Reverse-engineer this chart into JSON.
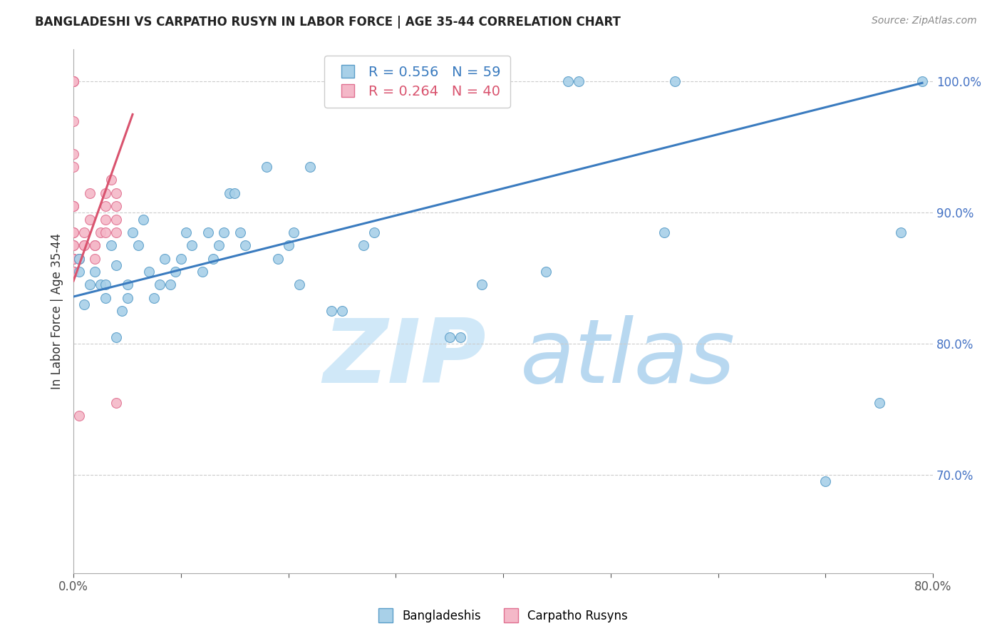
{
  "title": "BANGLADESHI VS CARPATHO RUSYN IN LABOR FORCE | AGE 35-44 CORRELATION CHART",
  "source": "Source: ZipAtlas.com",
  "ylabel": "In Labor Force | Age 35-44",
  "legend_blue_label": "Bangladeshis",
  "legend_pink_label": "Carpatho Rusyns",
  "R_blue": 0.556,
  "N_blue": 59,
  "R_pink": 0.264,
  "N_pink": 40,
  "blue_color": "#a8d0e8",
  "pink_color": "#f4b8c8",
  "blue_edge_color": "#5b9ec9",
  "pink_edge_color": "#e07090",
  "blue_line_color": "#3a7bbf",
  "pink_line_color": "#d9536e",
  "watermark_zip": "ZIP",
  "watermark_atlas": "atlas",
  "watermark_color": "#d0e8f8",
  "xlim": [
    0.0,
    0.8
  ],
  "ylim": [
    0.625,
    1.025
  ],
  "yticks": [
    0.7,
    0.8,
    0.9,
    1.0
  ],
  "xtick_positions": [
    0.0,
    0.1,
    0.2,
    0.3,
    0.4,
    0.5,
    0.6,
    0.7,
    0.8
  ],
  "xtick_labels": [
    "0.0%",
    "",
    "",
    "",
    "",
    "",
    "",
    "",
    "80.0%"
  ],
  "blue_x": [
    0.005,
    0.005,
    0.01,
    0.015,
    0.02,
    0.025,
    0.03,
    0.03,
    0.035,
    0.04,
    0.04,
    0.045,
    0.05,
    0.05,
    0.055,
    0.06,
    0.065,
    0.07,
    0.075,
    0.08,
    0.085,
    0.09,
    0.095,
    0.1,
    0.105,
    0.11,
    0.12,
    0.125,
    0.13,
    0.135,
    0.14,
    0.145,
    0.15,
    0.155,
    0.16,
    0.18,
    0.19,
    0.2,
    0.205,
    0.21,
    0.22,
    0.24,
    0.25,
    0.27,
    0.28,
    0.31,
    0.32,
    0.35,
    0.36,
    0.38,
    0.44,
    0.46,
    0.47,
    0.55,
    0.56,
    0.7,
    0.75,
    0.77,
    0.79
  ],
  "blue_y": [
    0.865,
    0.855,
    0.83,
    0.845,
    0.855,
    0.845,
    0.835,
    0.845,
    0.875,
    0.86,
    0.805,
    0.825,
    0.835,
    0.845,
    0.885,
    0.875,
    0.895,
    0.855,
    0.835,
    0.845,
    0.865,
    0.845,
    0.855,
    0.865,
    0.885,
    0.875,
    0.855,
    0.885,
    0.865,
    0.875,
    0.885,
    0.915,
    0.915,
    0.885,
    0.875,
    0.935,
    0.865,
    0.875,
    0.885,
    0.845,
    0.935,
    0.825,
    0.825,
    0.875,
    0.885,
    1.0,
    1.0,
    0.805,
    0.805,
    0.845,
    0.855,
    1.0,
    1.0,
    0.885,
    1.0,
    0.695,
    0.755,
    0.885,
    1.0
  ],
  "pink_x": [
    0.0,
    0.0,
    0.0,
    0.0,
    0.0,
    0.0,
    0.0,
    0.0,
    0.0,
    0.0,
    0.0,
    0.0,
    0.0,
    0.0,
    0.0,
    0.0,
    0.0,
    0.0,
    0.005,
    0.005,
    0.01,
    0.01,
    0.01,
    0.015,
    0.015,
    0.02,
    0.02,
    0.02,
    0.025,
    0.03,
    0.03,
    0.03,
    0.03,
    0.035,
    0.04,
    0.04,
    0.04,
    0.04,
    0.04,
    0.005
  ],
  "pink_y": [
    1.0,
    1.0,
    1.0,
    0.97,
    0.945,
    0.935,
    0.905,
    0.905,
    0.885,
    0.885,
    0.875,
    0.875,
    0.865,
    0.865,
    0.865,
    0.855,
    0.855,
    0.855,
    0.865,
    0.865,
    0.875,
    0.875,
    0.885,
    0.895,
    0.915,
    0.865,
    0.875,
    0.875,
    0.885,
    0.885,
    0.895,
    0.905,
    0.915,
    0.925,
    0.885,
    0.895,
    0.905,
    0.915,
    0.755,
    0.745
  ],
  "blue_trend_x": [
    0.0,
    0.79
  ],
  "blue_trend_y": [
    0.836,
    0.999
  ],
  "pink_trend_x": [
    0.0,
    0.055
  ],
  "pink_trend_y": [
    0.848,
    0.975
  ]
}
